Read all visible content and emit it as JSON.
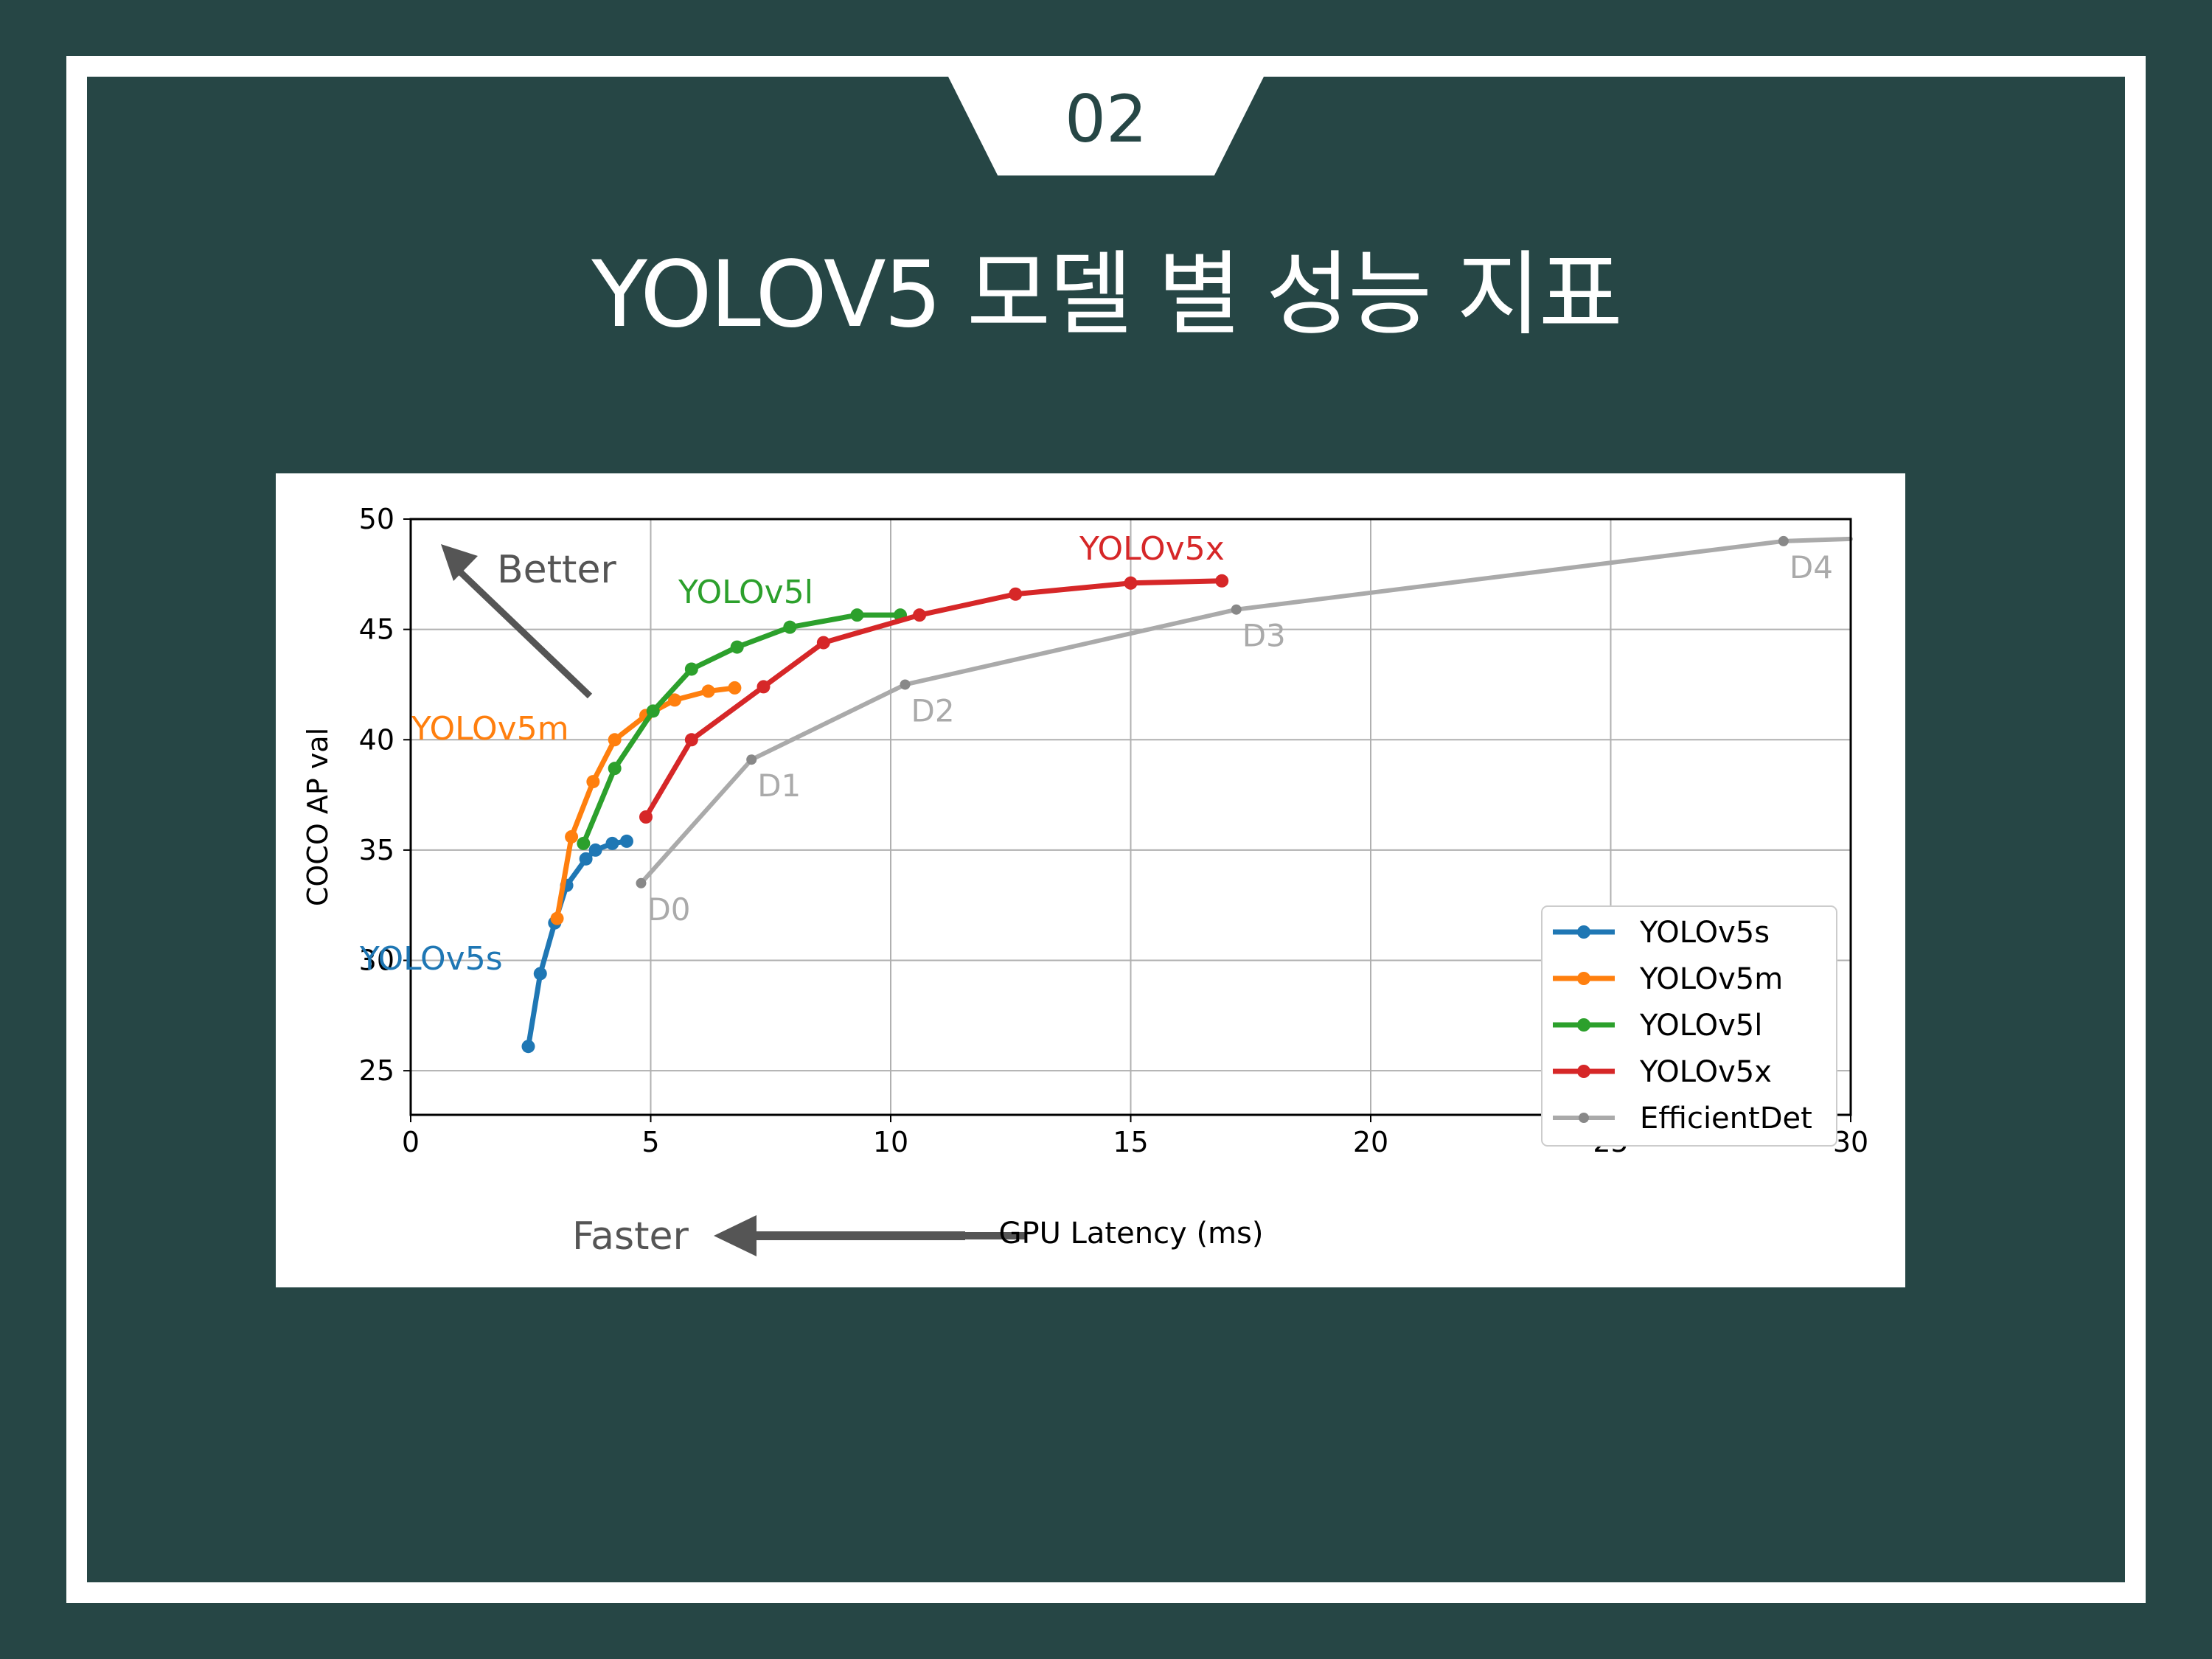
{
  "badge": {
    "number": "02"
  },
  "slide": {
    "title": "YOLOV5 모델 별 성능 지표"
  },
  "chart_data": {
    "type": "line",
    "xlabel": "GPU Latency (ms)",
    "ylabel": "COCO AP val",
    "xlim": [
      0,
      30
    ],
    "ylim": [
      23,
      50
    ],
    "x_ticks": [
      0,
      5,
      10,
      15,
      20,
      25,
      30
    ],
    "y_ticks": [
      25,
      30,
      35,
      40,
      45,
      50
    ],
    "grid": true,
    "legend_position": "lower-right",
    "annotations": {
      "better": "Better",
      "faster": "Faster",
      "series_labels": [
        {
          "text": "YOLOv5x",
          "series": "YOLOv5x"
        },
        {
          "text": "YOLOv5l",
          "series": "YOLOv5l"
        },
        {
          "text": "YOLOv5m",
          "series": "YOLOv5m"
        },
        {
          "text": "YOLOv5s",
          "series": "YOLOv5s"
        }
      ]
    },
    "series": [
      {
        "name": "YOLOv5s",
        "color": "#1f77b4",
        "points": [
          [
            2.45,
            26.1
          ],
          [
            2.7,
            29.4
          ],
          [
            3.0,
            31.7
          ],
          [
            3.25,
            33.4
          ],
          [
            3.65,
            34.6
          ],
          [
            3.85,
            35.0
          ],
          [
            4.2,
            35.3
          ],
          [
            4.5,
            35.4
          ]
        ]
      },
      {
        "name": "YOLOv5m",
        "color": "#ff7f0e",
        "points": [
          [
            3.05,
            31.9
          ],
          [
            3.35,
            35.6
          ],
          [
            3.8,
            38.1
          ],
          [
            4.25,
            40.0
          ],
          [
            4.9,
            41.1
          ],
          [
            5.5,
            41.8
          ],
          [
            6.2,
            42.2
          ],
          [
            6.75,
            42.35
          ]
        ]
      },
      {
        "name": "YOLOv5l",
        "color": "#2ca02c",
        "points": [
          [
            3.6,
            35.3
          ],
          [
            4.25,
            38.7
          ],
          [
            5.05,
            41.3
          ],
          [
            5.85,
            43.2
          ],
          [
            6.8,
            44.2
          ],
          [
            7.9,
            45.1
          ],
          [
            9.3,
            45.65
          ],
          [
            10.2,
            45.65
          ]
        ]
      },
      {
        "name": "YOLOv5x",
        "color": "#d62728",
        "points": [
          [
            4.9,
            36.5
          ],
          [
            5.85,
            40.0
          ],
          [
            7.35,
            42.4
          ],
          [
            8.6,
            44.4
          ],
          [
            10.6,
            45.65
          ],
          [
            12.6,
            46.6
          ],
          [
            15.0,
            47.1
          ],
          [
            16.9,
            47.2
          ]
        ]
      },
      {
        "name": "EfficientDet",
        "color": "#aaaaaa",
        "points": [
          [
            4.8,
            33.5
          ],
          [
            7.1,
            39.1
          ],
          [
            10.3,
            42.5
          ],
          [
            17.2,
            45.9
          ],
          [
            28.6,
            49.0
          ],
          [
            30.0,
            49.1
          ]
        ],
        "point_labels": [
          "D0",
          "D1",
          "D2",
          "D3",
          "D4",
          ""
        ]
      }
    ]
  }
}
